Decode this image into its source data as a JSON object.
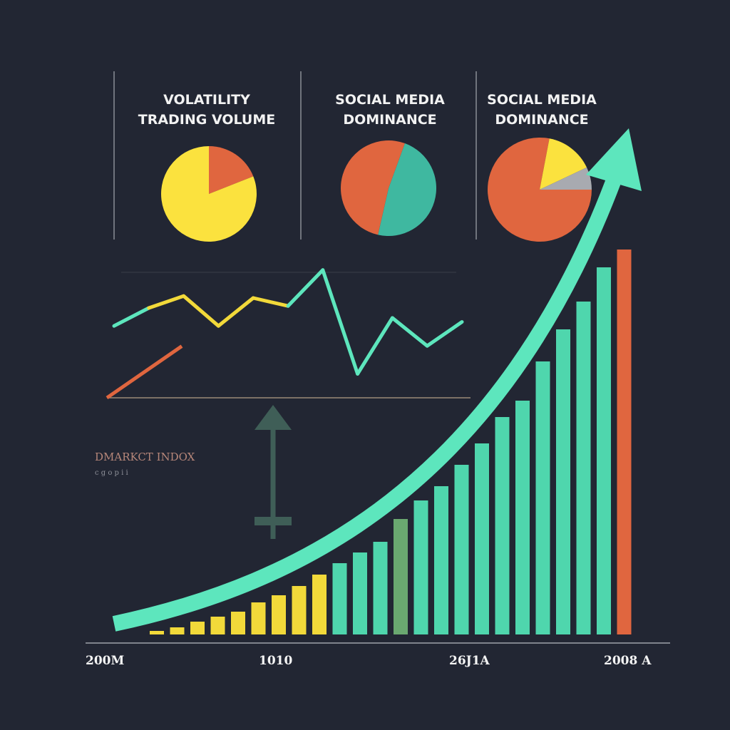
{
  "chart_data": {
    "type": "bar",
    "title": "",
    "panels": [
      {
        "title_lines": [
          "VOLATILITY",
          "TRADING VOLUME"
        ],
        "type": "pie",
        "slices": [
          {
            "value": 19,
            "color": "#e0663f"
          },
          {
            "value": 81,
            "color": "#fbe23e"
          }
        ]
      },
      {
        "title_lines": [
          "SOCIAL MEDIA",
          "DOMINANCE"
        ],
        "type": "pie",
        "slices": [
          {
            "value": 48,
            "color": "#3fb8a0"
          },
          {
            "value": 52,
            "color": "#e0663f"
          }
        ]
      },
      {
        "title_lines": [
          "SOCIAL MEDIA",
          "DOMINANCE"
        ],
        "type": "pie",
        "slices": [
          {
            "value": 78,
            "color": "#e0663f"
          },
          {
            "value": 15,
            "color": "#fbe23e"
          },
          {
            "value": 7,
            "color": "#a8aab0"
          }
        ]
      }
    ],
    "line": {
      "x": [
        0,
        1,
        2,
        3,
        4,
        5,
        6,
        7,
        8,
        9,
        10
      ],
      "y": [
        36,
        45,
        51,
        36,
        50,
        46,
        64,
        12,
        40,
        26,
        38
      ],
      "red_segment": [
        0,
        33
      ]
    },
    "side_label": {
      "title": "DMARKCT INDOX",
      "subtitle": "c g o p i i"
    },
    "bars": {
      "values": [
        5,
        10,
        18,
        25,
        32,
        45,
        55,
        68,
        84,
        100,
        115,
        130,
        162,
        188,
        208,
        238,
        268,
        305,
        328,
        383,
        428,
        467,
        515,
        540
      ],
      "colors": [
        "#f2d93a",
        "#f2d93a",
        "#f2d93a",
        "#f2d93a",
        "#f2d93a",
        "#f2d93a",
        "#f2d93a",
        "#f2d93a",
        "#f2d93a",
        "#4fd6ad",
        "#4fd6ad",
        "#4fd6ad",
        "#6aa870",
        "#4fd6ad",
        "#4fd6ad",
        "#4fd6ad",
        "#4fd6ad",
        "#4fd6ad",
        "#4fd6ad",
        "#4fd6ad",
        "#4fd6ad",
        "#4fd6ad",
        "#4fd6ad",
        "#e0663f"
      ],
      "ylim": [
        0,
        560
      ]
    },
    "x_tick_labels": [
      "200M",
      "1010",
      "26J1A",
      "2008 A"
    ],
    "accent": "#5de6bd"
  }
}
